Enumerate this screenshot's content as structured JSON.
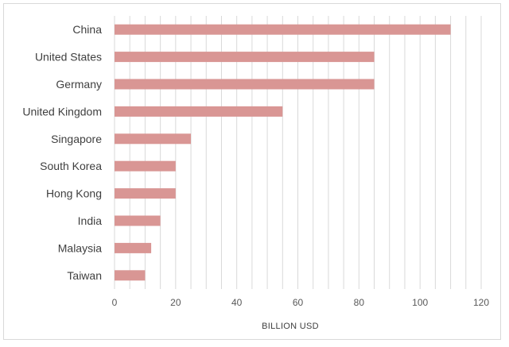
{
  "chart_data": {
    "type": "bar",
    "orientation": "horizontal",
    "categories": [
      "China",
      "United States",
      "Germany",
      "United Kingdom",
      "Singapore",
      "South Korea",
      "Hong Kong",
      "India",
      "Malaysia",
      "Taiwan"
    ],
    "values": [
      110,
      85,
      85,
      55,
      25,
      20,
      20,
      15,
      12,
      10
    ],
    "xlabel": "BILLION USD",
    "xlim": [
      0,
      120
    ],
    "xticks": [
      0,
      20,
      40,
      60,
      80,
      100,
      120
    ],
    "grid": true,
    "bar_color": "#d99694",
    "grid_color": "#d9d9d9"
  }
}
